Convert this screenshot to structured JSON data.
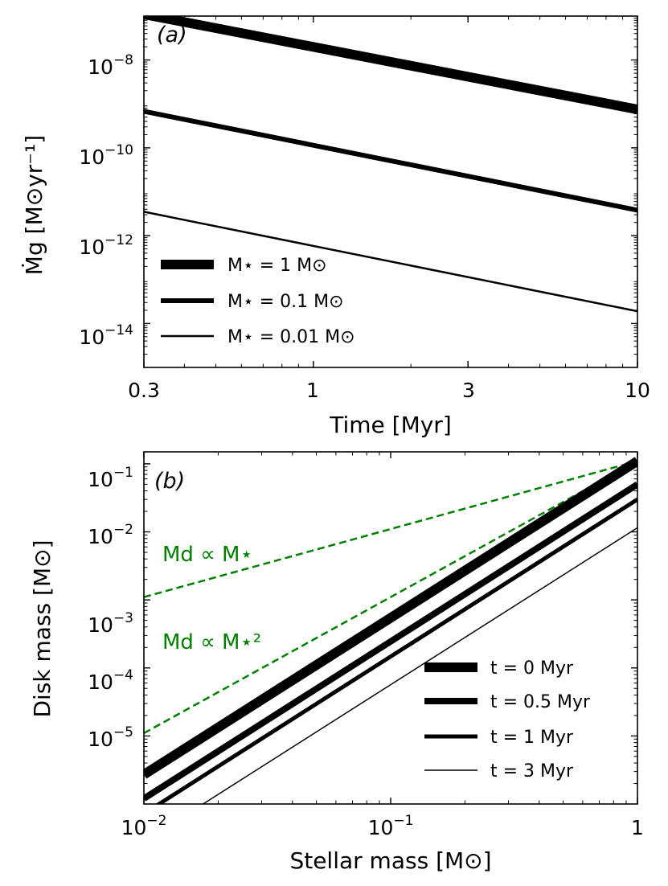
{
  "colors": {
    "line": "#000000",
    "dashed": "#008000",
    "frame": "#000000"
  },
  "chart_data": [
    {
      "type": "line",
      "panel_label": "(a)",
      "xscale": "log",
      "yscale": "log",
      "xlim": [
        0.3,
        10
      ],
      "ylim": [
        1e-15,
        1e-07
      ],
      "xlabel": "Time [Myr]",
      "ylabel": "Ṁg [M⊙yr⁻¹]",
      "xticks": [
        {
          "value": 0.3,
          "label": "0.3"
        },
        {
          "value": 1,
          "label": "1"
        },
        {
          "value": 3,
          "label": "3"
        },
        {
          "value": 10,
          "label": "10"
        }
      ],
      "yticks": [
        {
          "value": 1e-14,
          "base": "10",
          "exp": "−14"
        },
        {
          "value": 1e-12,
          "base": "10",
          "exp": "−12"
        },
        {
          "value": 1e-10,
          "base": "10",
          "exp": "−10"
        },
        {
          "value": 1e-08,
          "base": "10",
          "exp": "−8"
        }
      ],
      "legend_loc": "lower-left",
      "series": [
        {
          "name": "M⋆ = 1 M⊙",
          "linewidth": 12,
          "x": [
            0.3,
            10
          ],
          "y": [
            1.1e-07,
            7.5e-10
          ]
        },
        {
          "name": "M⋆ = 0.1 M⊙",
          "linewidth": 6,
          "x": [
            0.3,
            10
          ],
          "y": [
            6.8e-10,
            3.8e-12
          ]
        },
        {
          "name": "M⋆ = 0.01 M⊙",
          "linewidth": 2.5,
          "x": [
            0.3,
            10
          ],
          "y": [
            3.5e-12,
            1.9e-14
          ]
        }
      ]
    },
    {
      "type": "line",
      "panel_label": "(b)",
      "xscale": "log",
      "yscale": "log",
      "xlim": [
        0.01,
        1
      ],
      "ylim": [
        1e-06,
        0.15
      ],
      "xlabel": "Stellar mass [M⊙]",
      "ylabel": "Disk mass [M⊙]",
      "xticks": [
        {
          "value": 0.01,
          "base": "10",
          "exp": "−2"
        },
        {
          "value": 0.1,
          "base": "10",
          "exp": "−1"
        },
        {
          "value": 1,
          "base": "1",
          "exp": ""
        }
      ],
      "yticks": [
        {
          "value": 1e-05,
          "base": "10",
          "exp": "−5"
        },
        {
          "value": 0.0001,
          "base": "10",
          "exp": "−4"
        },
        {
          "value": 0.001,
          "base": "10",
          "exp": "−3"
        },
        {
          "value": 0.01,
          "base": "10",
          "exp": "−2"
        },
        {
          "value": 0.1,
          "base": "10",
          "exp": "−1"
        }
      ],
      "legend_loc": "lower-right",
      "series": [
        {
          "name": "t = 0 Myr",
          "linewidth": 12,
          "x": [
            0.01,
            1
          ],
          "y": [
            2.7e-06,
            0.11
          ]
        },
        {
          "name": "t = 0.5 Myr",
          "linewidth": 8,
          "x": [
            0.01,
            1
          ],
          "y": [
            1.2e-06,
            0.05
          ]
        },
        {
          "name": "t = 1 Myr",
          "linewidth": 5,
          "x": [
            0.01,
            1
          ],
          "y": [
            7.2e-07,
            0.03
          ]
        },
        {
          "name": "t = 3 Myr",
          "linewidth": 1.5,
          "x": [
            0.01,
            1
          ],
          "y": [
            2.8e-07,
            0.0115
          ]
        }
      ],
      "reference_lines": [
        {
          "label": "Md ∝ M⋆",
          "x": [
            0.01,
            1
          ],
          "y": [
            0.0011,
            0.11
          ]
        },
        {
          "label": "Md ∝ M⋆²",
          "x": [
            0.01,
            1
          ],
          "y": [
            1.1e-05,
            0.11
          ]
        }
      ]
    }
  ]
}
